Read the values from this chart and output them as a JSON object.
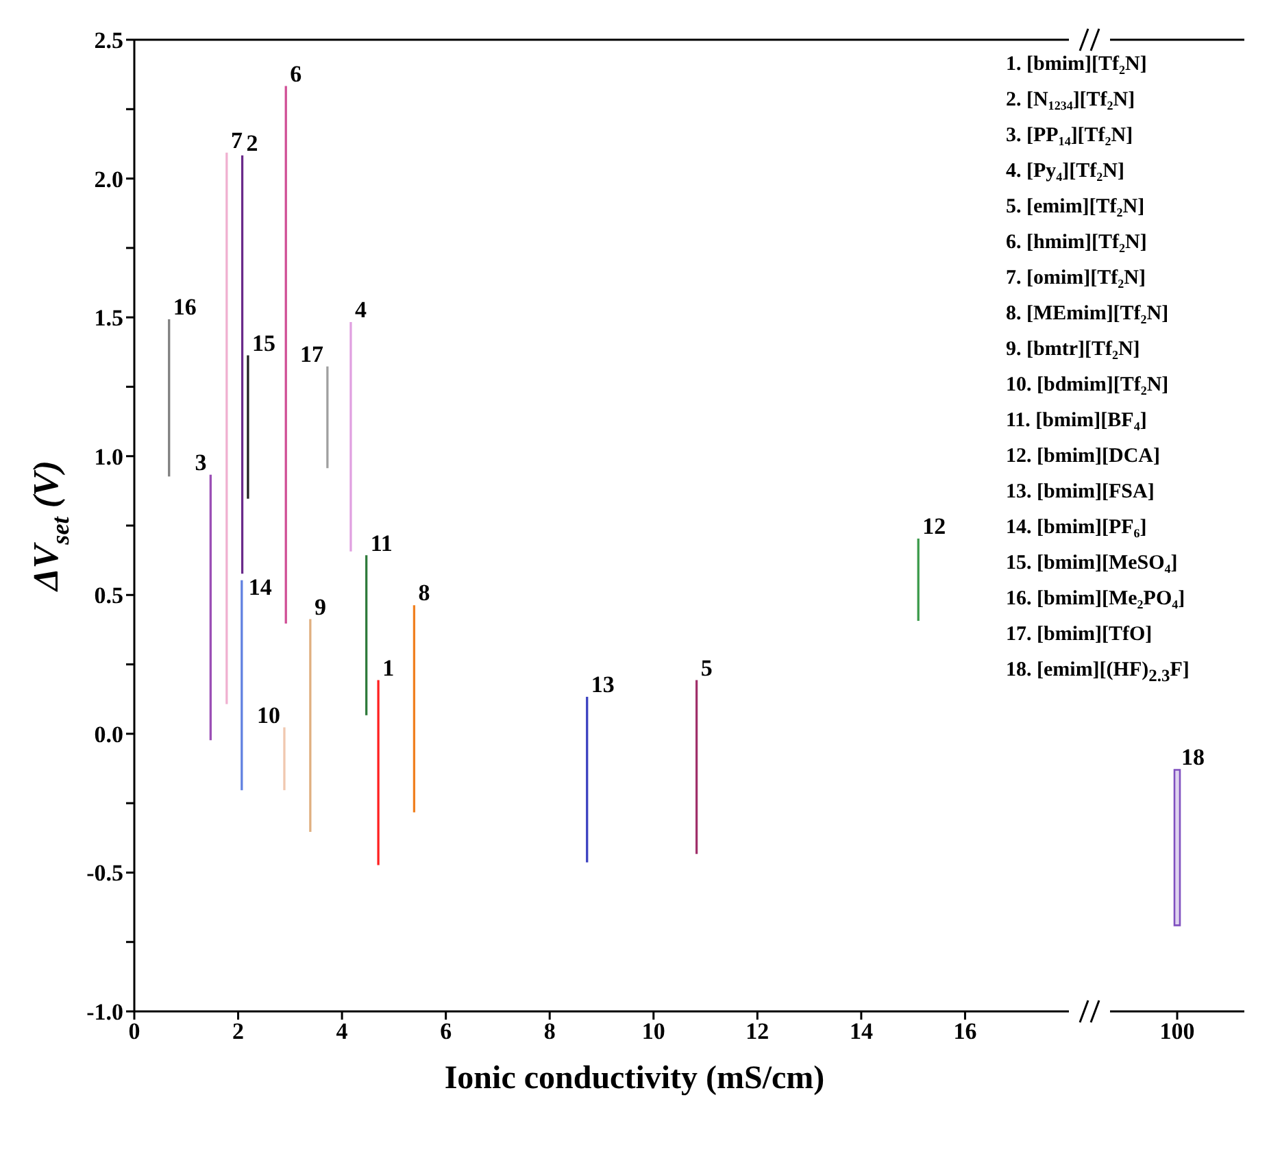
{
  "chart_data": [
    {
      "type": "bar",
      "xlabel": "Ionic conductivity (mS/cm)",
      "ylabel": "ΔV$_{set}$ (V)",
      "x": [
        0.67,
        1.47,
        1.78,
        2.07,
        2.08,
        2.19,
        2.89,
        2.92,
        3.39,
        3.72,
        4.17,
        4.47,
        4.7,
        5.39,
        8.72,
        10.83,
        15.1
      ],
      "base": [
        0.93,
        -0.02,
        0.11,
        -0.2,
        0.58,
        0.85,
        -0.2,
        0.4,
        -0.35,
        0.96,
        0.66,
        0.07,
        -0.47,
        -0.28,
        -0.46,
        -0.43,
        0.41
      ],
      "values": [
        0.56,
        0.95,
        1.98,
        0.75,
        1.5,
        0.51,
        0.22,
        1.93,
        0.76,
        0.36,
        0.82,
        0.57,
        0.66,
        0.74,
        0.59,
        0.62,
        0.29
      ],
      "colors": [
        "#808080",
        "#9b4fb5",
        "#f0b0d0",
        "#6080e0",
        "#6a2a8a",
        "#202020",
        "#f0c8b0",
        "#d04f96",
        "#e0b080",
        "#a0a0a0",
        "#e0a0e0",
        "#2e7a3a",
        "#ff2020",
        "#f08020",
        "#3a40c0",
        "#a0306a",
        "#3a9a4a"
      ],
      "xlim": [
        0,
        18
      ],
      "xticks": [
        0,
        2,
        4,
        6,
        8,
        10,
        12,
        14,
        16
      ],
      "ylim": [
        -1,
        2.5
      ],
      "yticks": [
        {
          "value": -1,
          "label": "-1.0"
        },
        {
          "value": -0.75,
          "label": null
        },
        {
          "value": -0.5,
          "label": "-0.5"
        },
        {
          "value": -0.25,
          "label": null
        },
        {
          "value": 0,
          "label": "0.0"
        },
        {
          "value": 0.25,
          "label": null
        },
        {
          "value": 0.5,
          "label": "0.5"
        },
        {
          "value": 0.75,
          "label": null
        },
        {
          "value": 1,
          "label": "1.0"
        },
        {
          "value": 1.25,
          "label": null
        },
        {
          "value": 1.5,
          "label": "1.5"
        },
        {
          "value": 1.75,
          "label": null
        },
        {
          "value": 2,
          "label": "2.0"
        },
        {
          "value": 2.25,
          "label": null
        },
        {
          "value": 2.5,
          "label": "2.5"
        }
      ],
      "annotations": [
        {
          "text": "1",
          "x": 4.7,
          "y": 0.19
        },
        {
          "text": "2",
          "x": 2.08,
          "y": 2.08
        },
        {
          "text": "3",
          "x": 1.47,
          "y": 0.93
        },
        {
          "text": "4",
          "x": 4.17,
          "y": 1.48
        },
        {
          "text": "5",
          "x": 10.83,
          "y": 0.19
        },
        {
          "text": "6",
          "x": 2.92,
          "y": 2.33
        },
        {
          "text": "7",
          "x": 1.78,
          "y": 2.09
        },
        {
          "text": "8",
          "x": 5.39,
          "y": 0.46
        },
        {
          "text": "9",
          "x": 3.39,
          "y": 0.41
        },
        {
          "text": "10",
          "x": 2.89,
          "y": 0.02
        },
        {
          "text": "11",
          "x": 4.47,
          "y": 0.64
        },
        {
          "text": "12",
          "x": 15.1,
          "y": 0.7
        },
        {
          "text": "13",
          "x": 8.72,
          "y": 0.13
        },
        {
          "text": "14",
          "x": 2.07,
          "y": 0.55
        },
        {
          "text": "15",
          "x": 2.19,
          "y": 1.36
        },
        {
          "text": "16",
          "x": 0.67,
          "y": 1.49
        },
        {
          "text": "17",
          "x": 3.72,
          "y": 1.32
        },
        "1.  [bmim][Tf₂N]",
        "2.  [N₁₂₃₄][Tf₂N]",
        "3.  [PP₁₄][Tf₂N]",
        "4.  [Py₄][Tf₂N]",
        "5.  [emim][Tf₂N]",
        "6.  [hmim][Tf₂N]",
        "7.  [omim][Tf₂N]",
        "8.  [MEmim][Tf₂N]",
        "9.  [bmtr][Tf₂N]",
        "10. [bdmim][Tf₂N]",
        "11. [bmim][BF₄]",
        "12. [bmim][DCA]",
        "13. [bmim][FSA]",
        "14. [bmim][PF₆]",
        "15. [bmim][MeSO₄]",
        "16. [bmim][Me₂PO₄]",
        "17. [bmim][TfO]",
        "18. [emim][(HF)$_{2.3}$F]"
      ]
    },
    {
      "type": "bar",
      "categories": [
        "100"
      ],
      "base": [
        -0.69
      ],
      "values": [
        0.56
      ],
      "colors": [
        "#8050c0"
      ],
      "ylim": [
        -1,
        2.5
      ],
      "tick_labels": "x",
      "annotations": [
        {
          "text": "18",
          "x": "100",
          "y": -0.13
        }
      ]
    }
  ]
}
